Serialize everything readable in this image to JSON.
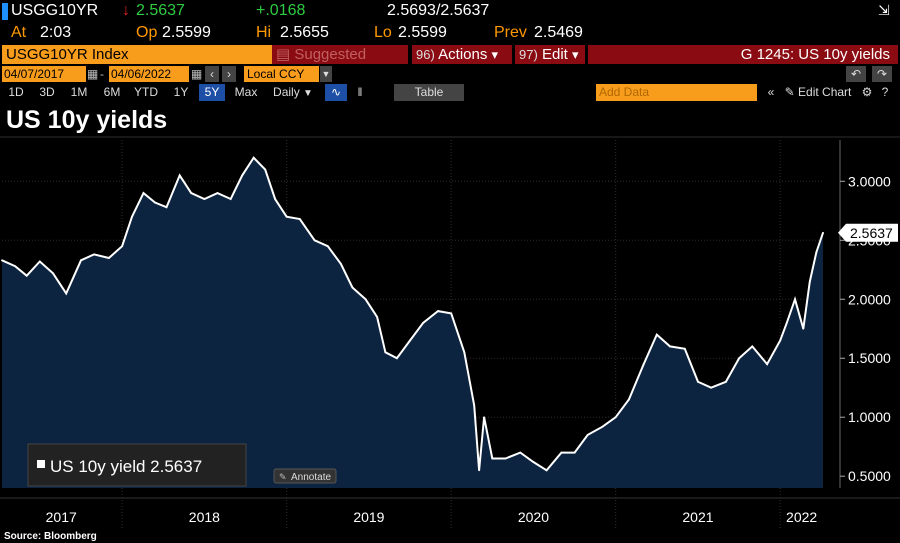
{
  "quote": {
    "ticker": "USGG10YR",
    "last": "2.5637",
    "change": "+.0168",
    "bid_ask": "2.5693/2.5637",
    "at_label": "At",
    "at_time": "2:03",
    "open_label": "Op",
    "open": "2.5599",
    "high_label": "Hi",
    "high": "2.5655",
    "low_label": "Lo",
    "low": "2.5599",
    "prev_label": "Prev",
    "prev": "2.5469"
  },
  "toolbar": {
    "security": "USGG10YR Index",
    "suggested": "Suggested Charts",
    "actions_num": "96)",
    "actions": "Actions",
    "edit_num": "97)",
    "edit": "Edit",
    "chart_title_right": "G 1245: US 10y yields",
    "start_date": "04/07/2017",
    "end_date": "04/06/2022",
    "currency": "Local CCY",
    "periods": [
      "1D",
      "3D",
      "1M",
      "6M",
      "YTD",
      "1Y",
      "5Y",
      "Max"
    ],
    "active_period": "5Y",
    "frequency": "Daily",
    "table": "Table",
    "add_data": "Add Data",
    "edit_chart": "Edit Chart"
  },
  "chart_title": "US 10y yields",
  "legend_label": "US 10y yield 2.5637",
  "annotate_label": "Annotate",
  "source": "Source: Bloomberg",
  "colors": {
    "area_fill": "#0c2440",
    "line": "#ffffff",
    "orange": "#f89c1c",
    "darkred": "#8a0c12",
    "up": "#2ecc40",
    "down": "#e02020"
  },
  "chart_data": {
    "type": "area",
    "title": "US 10y yields",
    "series": [
      {
        "name": "US 10y yield",
        "last_value": 2.5637,
        "points": [
          [
            2017.27,
            2.33
          ],
          [
            2017.35,
            2.28
          ],
          [
            2017.42,
            2.2
          ],
          [
            2017.5,
            2.32
          ],
          [
            2017.58,
            2.22
          ],
          [
            2017.66,
            2.05
          ],
          [
            2017.75,
            2.33
          ],
          [
            2017.83,
            2.38
          ],
          [
            2017.92,
            2.35
          ],
          [
            2018.0,
            2.45
          ],
          [
            2018.06,
            2.7
          ],
          [
            2018.13,
            2.9
          ],
          [
            2018.2,
            2.82
          ],
          [
            2018.27,
            2.78
          ],
          [
            2018.35,
            3.05
          ],
          [
            2018.42,
            2.9
          ],
          [
            2018.5,
            2.85
          ],
          [
            2018.58,
            2.9
          ],
          [
            2018.66,
            2.85
          ],
          [
            2018.73,
            3.05
          ],
          [
            2018.8,
            3.2
          ],
          [
            2018.87,
            3.1
          ],
          [
            2018.93,
            2.85
          ],
          [
            2019.0,
            2.7
          ],
          [
            2019.08,
            2.68
          ],
          [
            2019.17,
            2.5
          ],
          [
            2019.25,
            2.45
          ],
          [
            2019.33,
            2.3
          ],
          [
            2019.4,
            2.1
          ],
          [
            2019.48,
            2.0
          ],
          [
            2019.55,
            1.85
          ],
          [
            2019.6,
            1.55
          ],
          [
            2019.67,
            1.5
          ],
          [
            2019.75,
            1.65
          ],
          [
            2019.83,
            1.8
          ],
          [
            2019.92,
            1.9
          ],
          [
            2020.0,
            1.88
          ],
          [
            2020.08,
            1.55
          ],
          [
            2020.14,
            1.1
          ],
          [
            2020.17,
            0.55
          ],
          [
            2020.2,
            1.0
          ],
          [
            2020.25,
            0.65
          ],
          [
            2020.33,
            0.65
          ],
          [
            2020.42,
            0.7
          ],
          [
            2020.5,
            0.62
          ],
          [
            2020.58,
            0.55
          ],
          [
            2020.67,
            0.7
          ],
          [
            2020.75,
            0.7
          ],
          [
            2020.83,
            0.85
          ],
          [
            2020.92,
            0.92
          ],
          [
            2021.0,
            1.0
          ],
          [
            2021.08,
            1.15
          ],
          [
            2021.17,
            1.45
          ],
          [
            2021.25,
            1.7
          ],
          [
            2021.33,
            1.6
          ],
          [
            2021.42,
            1.58
          ],
          [
            2021.5,
            1.3
          ],
          [
            2021.58,
            1.25
          ],
          [
            2021.67,
            1.3
          ],
          [
            2021.75,
            1.5
          ],
          [
            2021.83,
            1.6
          ],
          [
            2021.92,
            1.45
          ],
          [
            2022.0,
            1.65
          ],
          [
            2022.04,
            1.8
          ],
          [
            2022.09,
            2.0
          ],
          [
            2022.14,
            1.75
          ],
          [
            2022.18,
            2.15
          ],
          [
            2022.22,
            2.4
          ],
          [
            2022.26,
            2.5637
          ]
        ]
      }
    ],
    "x_tick_labels": [
      "2017",
      "2018",
      "2019",
      "2020",
      "2021",
      "2022"
    ],
    "x_tick_values": [
      2017.3,
      2018.0,
      2019.0,
      2020.0,
      2021.0,
      2022.0
    ],
    "y_ticks": [
      "3.0000",
      "2.5000",
      "2.0000",
      "1.5000",
      "1.0000",
      "0.5000"
    ],
    "y_tick_values": [
      3.0,
      2.5,
      2.0,
      1.5,
      1.0,
      0.5
    ],
    "xlim": [
      2017.27,
      2022.26
    ],
    "ylim": [
      0.4,
      3.35
    ],
    "last_price_label": "2.5637",
    "grid": true,
    "legend": "bottom-left"
  }
}
